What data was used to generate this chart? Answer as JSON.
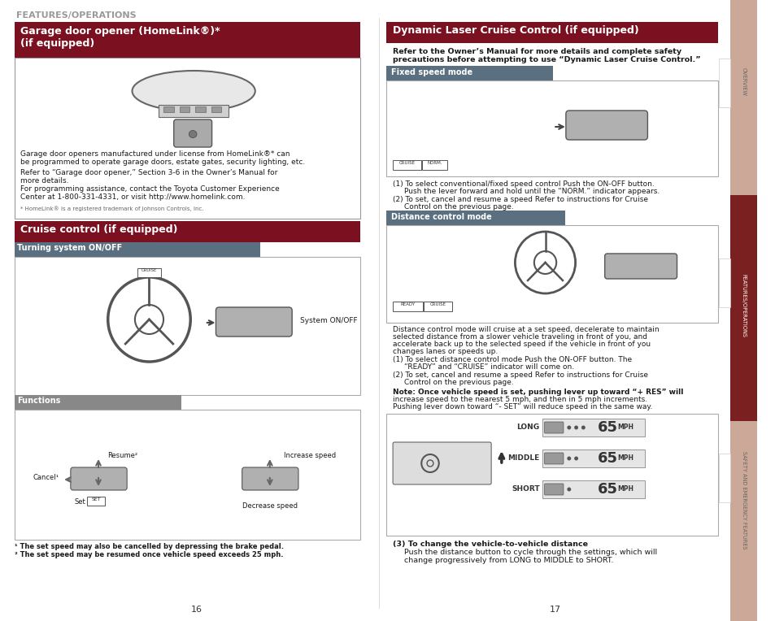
{
  "bg_color": "#ffffff",
  "dark_red": "#7a1020",
  "blue_gray": "#5a7080",
  "dark_gray_sub": "#888888",
  "sidebar_pink": "#cca898",
  "sidebar_dark_red": "#7a2020",
  "text_color": "#1a1a1a",
  "features_title": "FEATURES/OPERATIONS",
  "s1_title_line1": "Garage door opener (HomeLink®)*",
  "s1_title_line2": "(if equipped)",
  "s2_title": "Cruise control (if equipped)",
  "sub_turning": "Turning system ON/OFF",
  "sub_functions": "Functions",
  "r_title": "Dynamic Laser Cruise Control (if equipped)",
  "r_intro1": "Refer to the Owner’s Manual for more details and complete safety",
  "r_intro2": "precautions before attempting to use “Dynamic Laser Cruise Control.”",
  "r_sub1": "Fixed speed mode",
  "r_sub2": "Distance control mode",
  "page_num_left": "16",
  "page_num_right": "17",
  "sidebar_overview": "OVERVIEW",
  "sidebar_features": "FEATURES/OPERATIONS",
  "sidebar_safety": "SAFETY AND EMERGENCY FEATURES",
  "s1_text1": "Garage door openers manufactured under license from HomeLink®* can",
  "s1_text2": "be programmed to operate garage doors, estate gates, security lighting, etc.",
  "s1_text3": "Refer to “Garage door opener,” Section 3-6 in the Owner’s Manual for",
  "s1_text4": "more details.",
  "s1_text5": "For programming assistance, contact the Toyota Customer Experience",
  "s1_text6": "Center at 1-800-331-4331, or visit http://www.homelink.com.",
  "s1_footnote": "* HomeLink® is a registered trademark of Johnson Controls, Inc.",
  "turning_label": "System ON/OFF",
  "resume_label": "Resume²",
  "cancel_label": "Cancel¹",
  "set_label": "Set",
  "increase_label": "Increase speed",
  "decrease_label": "Decrease speed",
  "fn1": "¹ The set speed may also be cancelled by depressing the brake pedal.",
  "fn2": "² The set speed may be resumed once vehicle speed exceeds 25 mph.",
  "distances": [
    "LONG",
    "MIDDLE",
    "SHORT"
  ],
  "dist_dots": [
    3,
    2,
    1
  ],
  "speed_val": "65",
  "speed_unit": "MPH"
}
